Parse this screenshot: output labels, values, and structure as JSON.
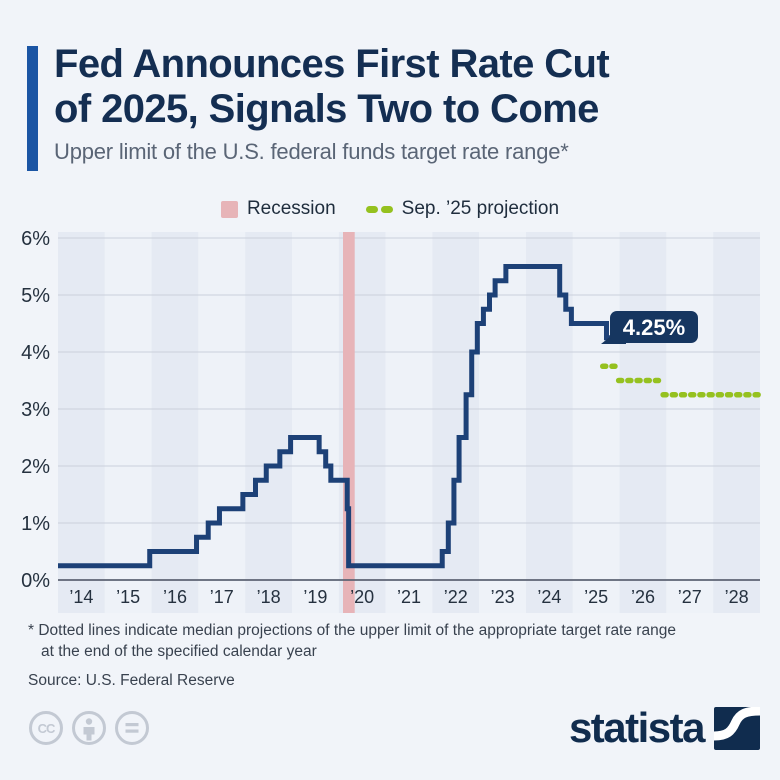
{
  "header": {
    "title_lines": [
      "Fed Announces First Rate Cut",
      "of 2025, Signals Two to Come"
    ],
    "subtitle": "Upper limit of the U.S. federal funds target rate range*"
  },
  "legend": {
    "recession_label": "Recession",
    "projection_label": "Sep. ’25 projection"
  },
  "chart_data": {
    "type": "line",
    "subtype": "step",
    "title": "Fed Announces First Rate Cut of 2025, Signals Two to Come",
    "subtitle": "Upper limit of the U.S. federal funds target rate range*",
    "unit": "%",
    "ylim": [
      0,
      6
    ],
    "y_ticks": [
      "0%",
      "1%",
      "2%",
      "3%",
      "4%",
      "5%",
      "6%"
    ],
    "grid": true,
    "legend_position": "top-center",
    "x_years": [
      2014,
      2015,
      2016,
      2017,
      2018,
      2019,
      2020,
      2021,
      2022,
      2023,
      2024,
      2025,
      2026,
      2027,
      2028
    ],
    "x_tick_labels": [
      "’14",
      "’15",
      "’16",
      "’17",
      "’18",
      "’19",
      "’20",
      "’21",
      "’22",
      "’23",
      "’24",
      "’25",
      "’26",
      "’27",
      "’28"
    ],
    "series": {
      "name": "Upper limit of U.S. federal funds target rate",
      "steps_year_value": [
        [
          2014.0,
          0.25
        ],
        [
          2015.96,
          0.5
        ],
        [
          2016.96,
          0.75
        ],
        [
          2017.21,
          1.0
        ],
        [
          2017.45,
          1.25
        ],
        [
          2017.95,
          1.5
        ],
        [
          2018.22,
          1.75
        ],
        [
          2018.45,
          2.0
        ],
        [
          2018.74,
          2.25
        ],
        [
          2018.97,
          2.5
        ],
        [
          2019.58,
          2.25
        ],
        [
          2019.72,
          2.0
        ],
        [
          2019.83,
          1.75
        ],
        [
          2020.18,
          1.25
        ],
        [
          2020.21,
          0.25
        ],
        [
          2022.21,
          0.5
        ],
        [
          2022.34,
          1.0
        ],
        [
          2022.46,
          1.75
        ],
        [
          2022.57,
          2.5
        ],
        [
          2022.72,
          3.25
        ],
        [
          2022.84,
          4.0
        ],
        [
          2022.96,
          4.5
        ],
        [
          2023.09,
          4.75
        ],
        [
          2023.22,
          5.0
        ],
        [
          2023.34,
          5.25
        ],
        [
          2023.57,
          5.5
        ],
        [
          2024.72,
          5.0
        ],
        [
          2024.85,
          4.75
        ],
        [
          2024.97,
          4.5
        ],
        [
          2025.72,
          4.25
        ]
      ],
      "end_x": 2025.82,
      "end_value": 4.25,
      "end_label": "4.25%"
    },
    "projections": [
      {
        "year_end": 2025,
        "value": 3.75,
        "from": 2025.64,
        "to": 2025.98
      },
      {
        "year_end": 2026,
        "value": 3.5,
        "from": 2025.98,
        "to": 2026.93
      },
      {
        "year_end": 2027,
        "value": 3.25,
        "from": 2026.93,
        "to": 2028.99
      }
    ],
    "recession_band": {
      "from": 2020.09,
      "to": 2020.34
    },
    "colors": {
      "line": "#1d4177",
      "projection": "#95c11f",
      "recession": "#e7b4b8",
      "callout_bg": "#163660",
      "stripe_dark": "#e5eaf3",
      "stripe_light": "#eef2f8",
      "grid": "#cad0db",
      "axis": "#5c6373"
    }
  },
  "footnote": {
    "line1": "* Dotted lines indicate median projections of the upper limit of the appropriate target rate range",
    "line2": "at the end of the specified calendar year"
  },
  "source": "Source: U.S. Federal Reserve",
  "footer": {
    "brand": "statista",
    "license_icons": [
      "cc-icon",
      "attribution-person-icon",
      "equals-icon"
    ]
  }
}
